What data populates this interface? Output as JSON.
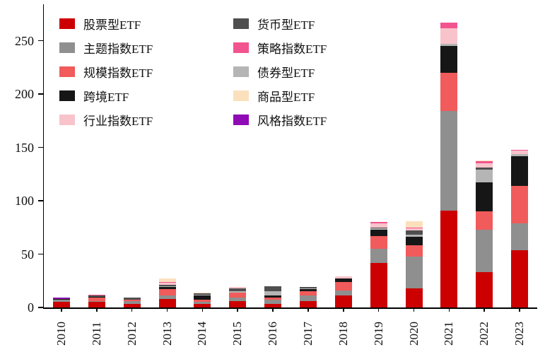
{
  "chart_data": {
    "type": "bar",
    "stacked": true,
    "title": "",
    "xlabel": "",
    "ylabel": "",
    "grid": false,
    "legend_position": "upper-left-inside",
    "ylim": [
      0,
      275
    ],
    "y_ticks": [
      0,
      50,
      100,
      150,
      200,
      250
    ],
    "categories": [
      "2010",
      "2011",
      "2012",
      "2013",
      "2014",
      "2015",
      "2016",
      "2017",
      "2018",
      "2019",
      "2020",
      "2021",
      "2022",
      "2023"
    ],
    "series": [
      {
        "name": "股票型ETF",
        "color": "#cc0000",
        "values": [
          5,
          5,
          3,
          8,
          3,
          6,
          3,
          6,
          11,
          42,
          18,
          91,
          33,
          54
        ]
      },
      {
        "name": "主题指数ETF",
        "color": "#8f8f8f",
        "values": [
          2,
          1,
          3,
          3,
          2,
          3,
          4,
          5,
          5,
          13,
          30,
          93,
          40,
          25
        ]
      },
      {
        "name": "规模指数ETF",
        "color": "#f15b5b",
        "values": [
          0,
          3,
          1,
          6,
          2,
          5,
          2,
          4,
          8,
          12,
          10,
          36,
          17,
          35
        ]
      },
      {
        "name": "跨境ETF",
        "color": "#161616",
        "values": [
          1,
          1,
          0,
          2,
          4,
          0,
          2,
          2,
          3,
          6,
          8,
          25,
          27,
          28
        ]
      },
      {
        "name": "债券型ETF",
        "color": "#b5b5b5",
        "values": [
          0,
          0,
          0,
          1,
          1,
          1,
          4,
          1,
          0,
          1,
          2,
          2,
          12,
          2
        ]
      },
      {
        "name": "货币型ETF",
        "color": "#4f4f4f",
        "values": [
          0,
          1,
          2,
          1,
          1,
          3,
          5,
          1,
          0,
          1,
          4,
          0,
          2,
          0
        ]
      },
      {
        "name": "行业指数ETF",
        "color": "#f8c3cb",
        "values": [
          0,
          0,
          0,
          2,
          0,
          1,
          0,
          0,
          2,
          4,
          2,
          15,
          4,
          3
        ]
      },
      {
        "name": "策略指数ETF",
        "color": "#f2548f",
        "values": [
          0,
          1,
          0,
          1,
          0,
          0,
          0,
          0,
          0,
          1,
          1,
          5,
          2,
          1
        ]
      },
      {
        "name": "商品型ETF",
        "color": "#fbe0bd",
        "values": [
          0,
          0,
          0,
          3,
          1,
          0,
          0,
          0,
          0,
          0,
          6,
          0,
          1,
          0
        ]
      },
      {
        "name": "风格指数ETF",
        "color": "#8e0bb5",
        "values": [
          1,
          0,
          0,
          0,
          0,
          0,
          0,
          0,
          0,
          0,
          0,
          0,
          0,
          0
        ]
      }
    ],
    "legend_columns": [
      [
        "股票型ETF",
        "主题指数ETF",
        "规模指数ETF",
        "跨境ETF",
        "行业指数ETF"
      ],
      [
        "货币型ETF",
        "策略指数ETF",
        "债券型ETF",
        "商品型ETF",
        "风格指数ETF"
      ]
    ]
  }
}
